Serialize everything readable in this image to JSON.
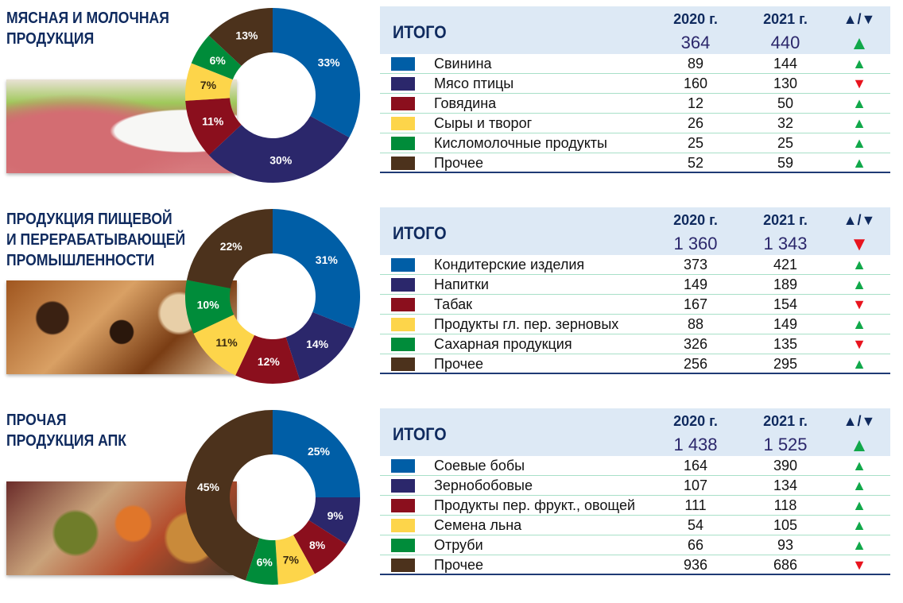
{
  "colors": {
    "blue": "#005ea6",
    "navy": "#2b276b",
    "maroon": "#8b0f1d",
    "yellow": "#fdd54a",
    "green": "#008c3a",
    "brown": "#4c321c",
    "up": "#11a84a",
    "down": "#e8141e"
  },
  "header": {
    "total_label": "ИТОГО",
    "year1": "2020 г.",
    "year2": "2021 г.",
    "trend": "▲/▼"
  },
  "chart_data": [
    {
      "type": "pie",
      "donut": true,
      "title": "МЯСНАЯ И МОЛОЧНАЯ\nПРОДУКЦИЯ",
      "photo": "meat-and-milk",
      "totals": {
        "y2020": "364",
        "y2021": "440",
        "trend": "up"
      },
      "categories": [
        "Свинина",
        "Мясо птицы",
        "Говядина",
        "Сыры и творог",
        "Кисломолочные продукты",
        "Прочее"
      ],
      "slices": [
        33,
        30,
        11,
        7,
        6,
        13
      ],
      "slice_labels": [
        "33%",
        "30%",
        "11%",
        "7%",
        "6%",
        "13%"
      ],
      "y2020": [
        "89",
        "160",
        "12",
        "26",
        "25",
        "52"
      ],
      "y2021": [
        "144",
        "130",
        "50",
        "32",
        "25",
        "59"
      ],
      "trend": [
        "up",
        "down",
        "up",
        "up",
        "up",
        "up"
      ]
    },
    {
      "type": "pie",
      "donut": true,
      "title": "ПРОДУКЦИЯ ПИЩЕВОЙ\nИ ПЕРЕРАБАТЫВАЮЩЕЙ\nПРОМЫШЛЕННОСТИ",
      "photo": "pastry",
      "totals": {
        "y2020": "1 360",
        "y2021": "1 343",
        "trend": "down"
      },
      "categories": [
        "Кондитерские изделия",
        "Напитки",
        "Табак",
        "Продукты гл. пер. зерновых",
        "Сахарная продукция",
        "Прочее"
      ],
      "slices": [
        31,
        14,
        12,
        11,
        10,
        22
      ],
      "slice_labels": [
        "31%",
        "14%",
        "12%",
        "11%",
        "10%",
        "22%"
      ],
      "y2020": [
        "373",
        "149",
        "167",
        "88",
        "326",
        "256"
      ],
      "y2021": [
        "421",
        "189",
        "154",
        "149",
        "135",
        "295"
      ],
      "trend": [
        "up",
        "up",
        "down",
        "up",
        "down",
        "up"
      ]
    },
    {
      "type": "pie",
      "donut": true,
      "title": "ПРОЧАЯ\nПРОДУКЦИЯ АПК",
      "photo": "beans-and-lentils",
      "totals": {
        "y2020": "1 438",
        "y2021": "1 525",
        "trend": "up"
      },
      "categories": [
        "Соевые бобы",
        "Зернобобовые",
        "Продукты пер. фрукт., овощей",
        "Семена льна",
        "Отруби",
        "Прочее"
      ],
      "slices": [
        25,
        9,
        8,
        7,
        6,
        45
      ],
      "slice_labels": [
        "25%",
        "9%",
        "8%",
        "7%",
        "6%",
        "45%"
      ],
      "y2020": [
        "164",
        "107",
        "111",
        "54",
        "66",
        "936"
      ],
      "y2021": [
        "390",
        "134",
        "118",
        "105",
        "93",
        "686"
      ],
      "trend": [
        "up",
        "up",
        "up",
        "up",
        "up",
        "down"
      ]
    }
  ]
}
